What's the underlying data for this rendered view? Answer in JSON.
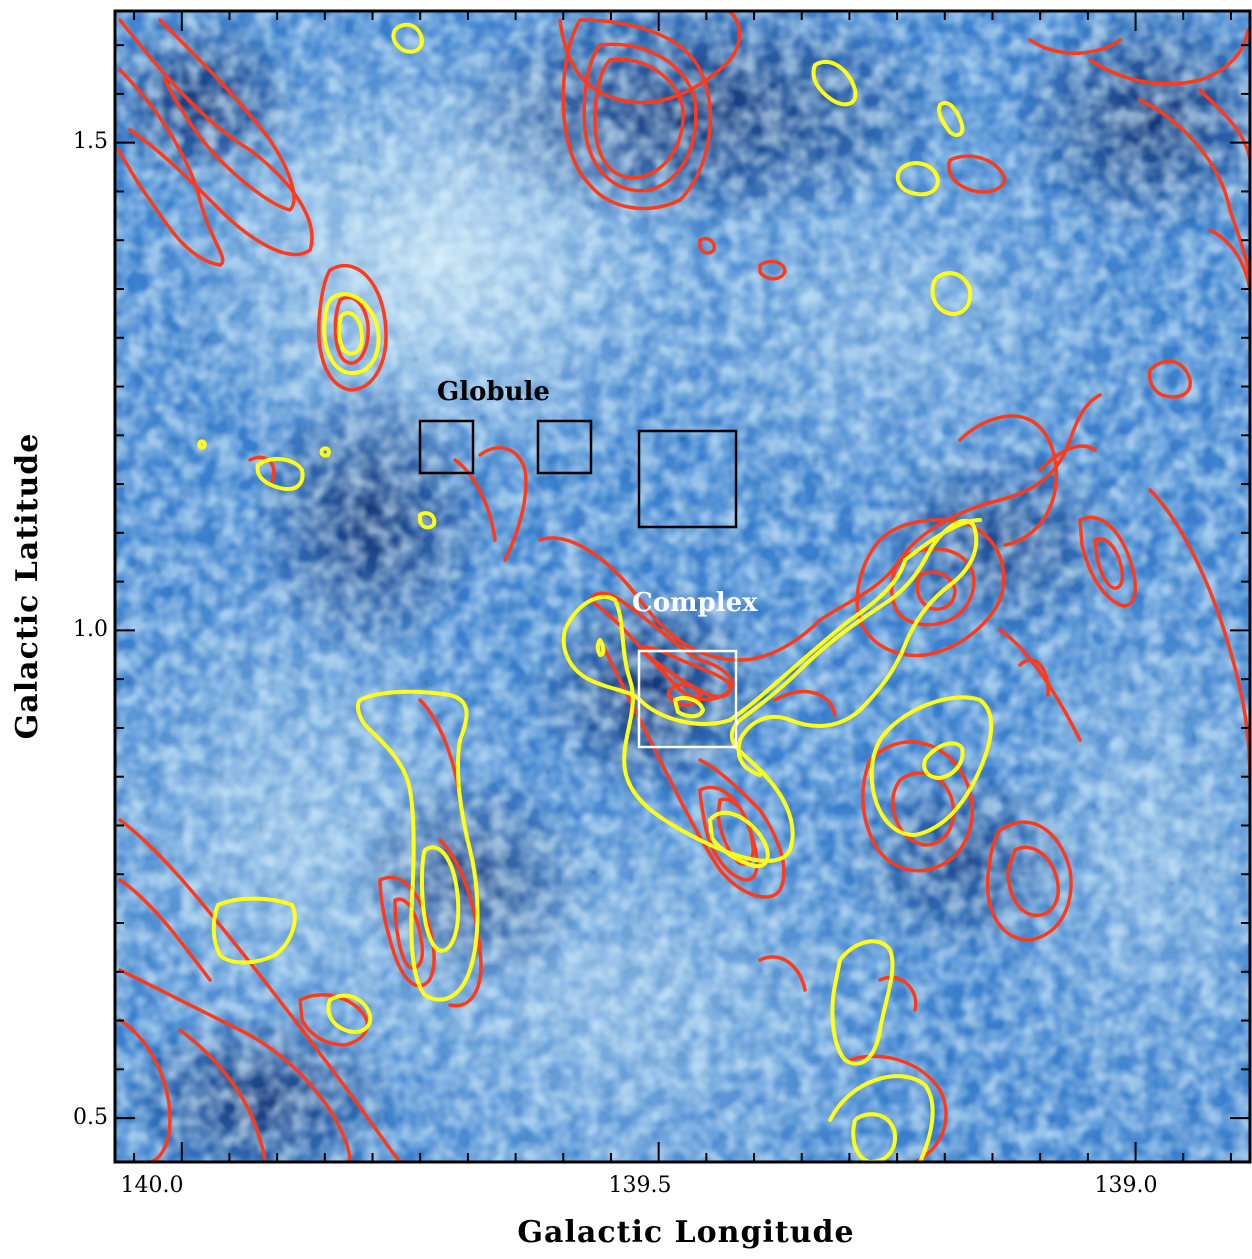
{
  "map": {
    "x_axis": {
      "label": "Galactic Longitude",
      "range": [
        140.07,
        138.88
      ],
      "ticks": [
        {
          "value": 140.0,
          "label": "140.0"
        },
        {
          "value": 139.5,
          "label": "139.5"
        },
        {
          "value": 139.0,
          "label": "139.0"
        }
      ]
    },
    "y_axis": {
      "label": "Galactic Latitude",
      "range": [
        0.455,
        1.635
      ],
      "ticks": [
        {
          "value": 0.5,
          "label": "0.5"
        },
        {
          "value": 1.0,
          "label": "1.0"
        },
        {
          "value": 1.5,
          "label": "1.5"
        }
      ]
    },
    "background": {
      "description_colormap": [
        "#0a2a6e",
        "#1f5fb4",
        "#63a9e6",
        "#d9f5ff"
      ]
    },
    "contours": {
      "red_color": "#ff3a1a",
      "yellow_color": "#ffff1a"
    },
    "regions": [
      {
        "name": "Globule",
        "label": "Globule",
        "color": "#000000"
      },
      {
        "name": "Complex",
        "label": "Complex",
        "color": "#ffffff"
      }
    ]
  }
}
